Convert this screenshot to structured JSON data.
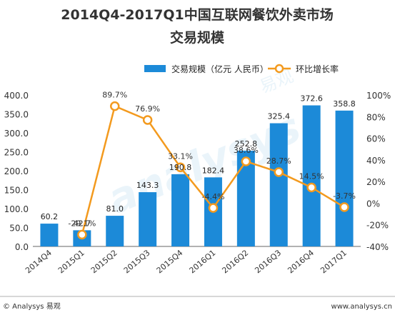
{
  "chart_data": {
    "type": "bar",
    "title_line1": "2014Q4-2017Q1中国互联网餐饮外卖市场",
    "title_line2": "交易规模",
    "categories": [
      "2014Q4",
      "2015Q1",
      "2015Q2",
      "2015Q3",
      "2015Q4",
      "2016Q1",
      "2016Q2",
      "2016Q3",
      "2016Q4",
      "2017Q1"
    ],
    "series": [
      {
        "name": "交易规模（亿元 人民币）",
        "type": "bar",
        "axis": "left",
        "color": "#1c8ad8",
        "values": [
          60.2,
          42.7,
          81.0,
          143.3,
          190.8,
          182.4,
          252.8,
          325.4,
          372.6,
          358.8
        ],
        "labels": [
          "60.2",
          "42.7",
          "81.0",
          "143.3",
          "190.8",
          "182.4",
          "252.8",
          "325.4",
          "372.6",
          "358.8"
        ]
      },
      {
        "name": "环比增长率",
        "type": "line",
        "axis": "right",
        "color": "#f39a1e",
        "values": [
          null,
          -29.1,
          89.7,
          76.9,
          33.1,
          -4.4,
          38.6,
          28.7,
          14.5,
          -3.7
        ],
        "labels": [
          null,
          "-29.1%",
          "89.7%",
          "76.9%",
          "33.1%",
          "-4.4%",
          "38.6%",
          "28.7%",
          "14.5%",
          "-3.7%"
        ]
      }
    ],
    "ylim_left": [
      0,
      400
    ],
    "yticks_left": [
      "0.0",
      "50.0",
      "100.0",
      "150.0",
      "200.0",
      "250.0",
      "300.0",
      "350.0",
      "400.0"
    ],
    "ylim_right": [
      -40,
      100
    ],
    "yticks_right": [
      "-40%",
      "-20%",
      "0%",
      "20%",
      "40%",
      "60%",
      "80%",
      "100%"
    ],
    "legend_position": "top-right",
    "grid": false
  },
  "footer": {
    "left": "© Analysys 易观",
    "right": "www.analysys.cn"
  },
  "watermark": {
    "text": "analysys",
    "cn": "易观"
  }
}
